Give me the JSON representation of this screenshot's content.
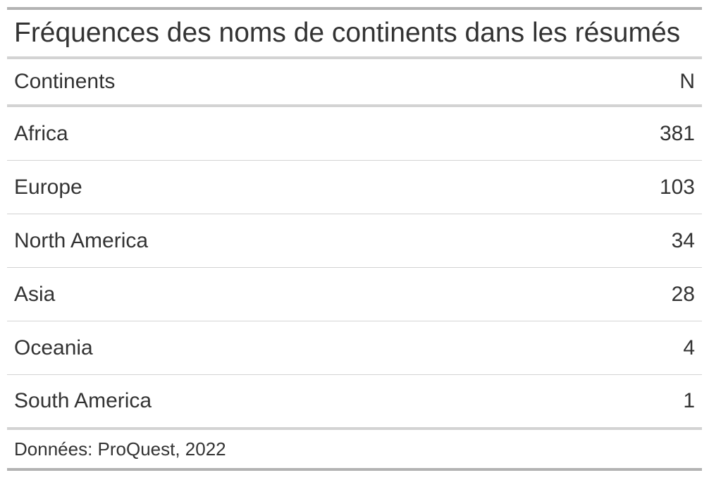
{
  "chart_data": {
    "type": "table",
    "title": "Fréquences des noms de continents dans les résumés",
    "columns": [
      "Continents",
      "N"
    ],
    "rows": [
      {
        "continent": "Africa",
        "n": 381
      },
      {
        "continent": "Europe",
        "n": 103
      },
      {
        "continent": "North America",
        "n": 34
      },
      {
        "continent": "Asia",
        "n": 28
      },
      {
        "continent": "Oceania",
        "n": 4
      },
      {
        "continent": "South America",
        "n": 1
      }
    ],
    "source_note": "Données: ProQuest, 2022"
  }
}
